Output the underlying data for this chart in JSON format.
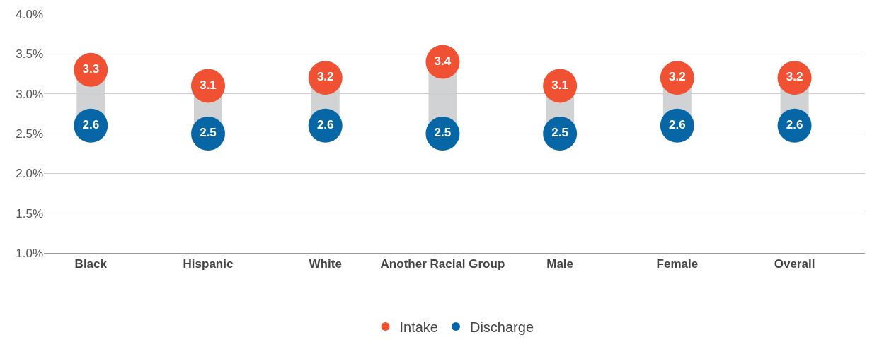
{
  "chart_data": {
    "type": "scatter",
    "categories": [
      "Black",
      "Hispanic",
      "White",
      "Another Racial Group",
      "Male",
      "Female",
      "Overall"
    ],
    "series": [
      {
        "name": "Intake",
        "color": "#f05133",
        "values": [
          3.3,
          3.1,
          3.2,
          3.4,
          3.1,
          3.2,
          3.2
        ]
      },
      {
        "name": "Discharge",
        "color": "#0767a6",
        "values": [
          2.6,
          2.5,
          2.6,
          2.5,
          2.5,
          2.6,
          2.6
        ]
      }
    ],
    "ylim": [
      1.0,
      4.0
    ],
    "yticks": [
      {
        "value": 1.0,
        "label": "1.0%"
      },
      {
        "value": 1.5,
        "label": "1.5%"
      },
      {
        "value": 2.0,
        "label": "2.0%"
      },
      {
        "value": 2.5,
        "label": "2.5%"
      },
      {
        "value": 3.0,
        "label": "3.0%"
      },
      {
        "value": 3.5,
        "label": "3.5%"
      },
      {
        "value": 4.0,
        "label": "4.0%"
      }
    ],
    "grid": "y",
    "legend": "bottom",
    "marker": "circle",
    "data_labels": true
  }
}
